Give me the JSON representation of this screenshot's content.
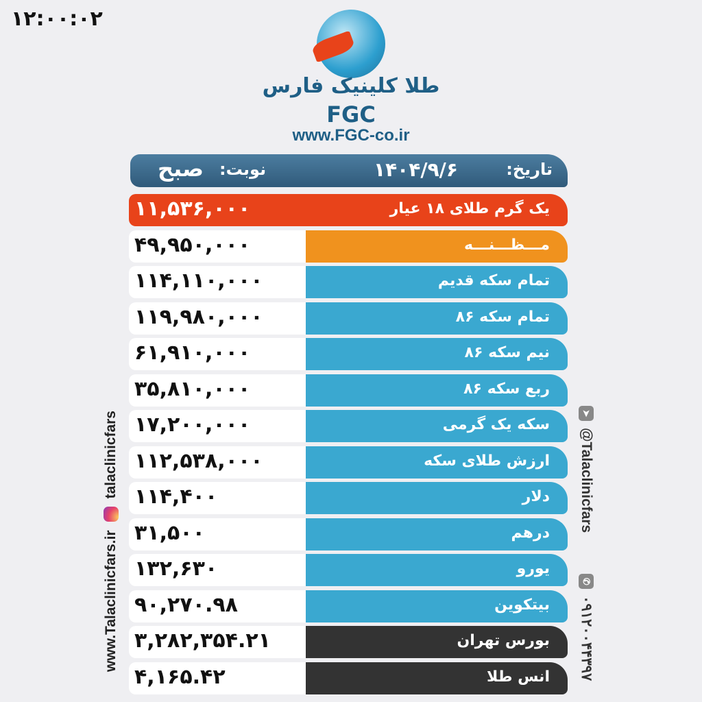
{
  "time": "۱۲:۰۰:۰۲",
  "brand": {
    "name_fa": "طلا کلینیک فارس",
    "name_en": "FGC",
    "url": "www.FGC-co.ir"
  },
  "header": {
    "date_label": "تاریخ:",
    "date_value": "۱۴۰۴/۹/۶",
    "shift_label": "نوبت:",
    "shift_value": "صبح"
  },
  "colors": {
    "header": "#3f6a8a",
    "gold18": "#e8431a",
    "mazaneh": "#f0921e",
    "blue": "#3aa8d0",
    "dark": "#333333"
  },
  "rows": [
    {
      "label": "یک گرم طلای ۱۸ عیار",
      "value": "۱۱,۵۳۶,۰۰۰"
    },
    {
      "label": "مـــظـــنـــه",
      "value": "۴۹,۹۵۰,۰۰۰"
    },
    {
      "label": "تمام سکه قدیم",
      "value": "۱۱۴,۱۱۰,۰۰۰"
    },
    {
      "label": "تمام سکه ۸۶",
      "value": "۱۱۹,۹۸۰,۰۰۰"
    },
    {
      "label": "نیم سکه ۸۶",
      "value": "۶۱,۹۱۰,۰۰۰"
    },
    {
      "label": "ربع سکه ۸۶",
      "value": "۳۵,۸۱۰,۰۰۰"
    },
    {
      "label": "سکه یک گرمی",
      "value": "۱۷,۲۰۰,۰۰۰"
    },
    {
      "label": "ارزش طلای سکه",
      "value": "۱۱۲,۵۳۸,۰۰۰"
    },
    {
      "label": "دلار",
      "value": "۱۱۴,۴۰۰"
    },
    {
      "label": "درهم",
      "value": "۳۱,۵۰۰"
    },
    {
      "label": "یورو",
      "value": "۱۳۲,۶۳۰"
    },
    {
      "label": "بیتکوین",
      "value": "۹۰,۲۷۰.۹۸"
    },
    {
      "label": "بورس تهران",
      "value": "۳,۲۸۲,۳۵۴.۲۱"
    },
    {
      "label": "انس طلا",
      "value": "۴,۱۶۵.۴۲"
    }
  ],
  "social": {
    "website": "www.Talaclinicfars.ir",
    "instagram": "talaclinicfars",
    "telegram": "@Talaclinicfars",
    "phone": "۰۹۱۲۰۰۴۴۳۹۷"
  }
}
